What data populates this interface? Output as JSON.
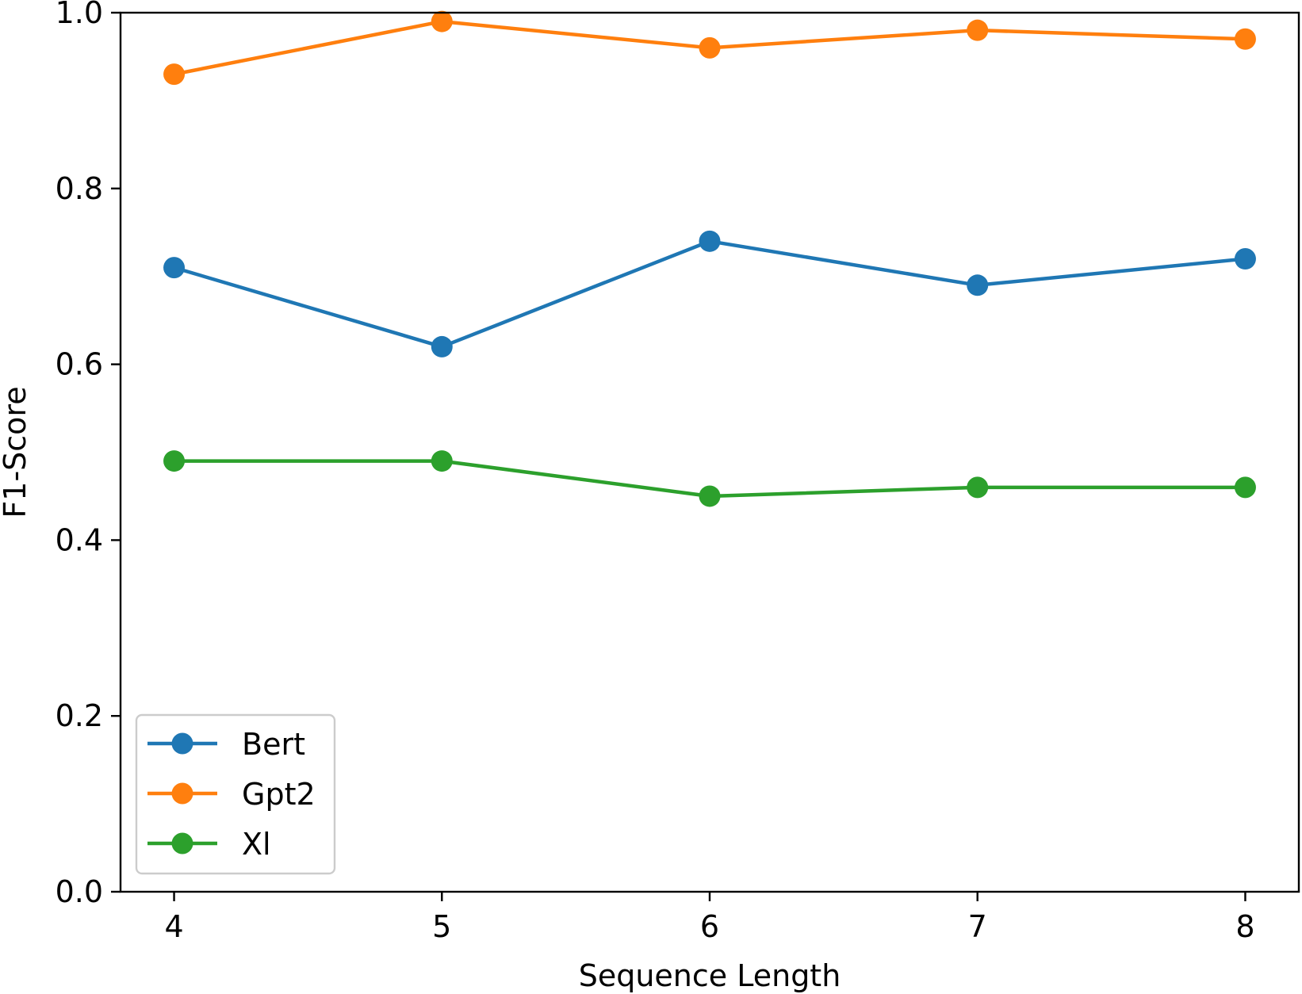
{
  "chart_data": {
    "type": "line",
    "title": "",
    "xlabel": "Sequence Length",
    "ylabel": "F1-Score",
    "x": [
      4,
      5,
      6,
      7,
      8
    ],
    "xticks": [
      "4",
      "5",
      "6",
      "7",
      "8"
    ],
    "yticks": [
      "0.0",
      "0.2",
      "0.4",
      "0.6",
      "0.8",
      "1.0"
    ],
    "xlim": [
      3.8,
      8.2
    ],
    "ylim": [
      0,
      1.0
    ],
    "grid": false,
    "legend_position": "lower-left",
    "series": [
      {
        "name": "Bert",
        "color": "#1f77b4",
        "values": [
          0.71,
          0.62,
          0.74,
          0.69,
          0.72
        ]
      },
      {
        "name": "Gpt2",
        "color": "#ff7f0e",
        "values": [
          0.93,
          0.99,
          0.96,
          0.98,
          0.97
        ]
      },
      {
        "name": "Xl",
        "color": "#2ca02c",
        "values": [
          0.49,
          0.49,
          0.45,
          0.46,
          0.46
        ]
      }
    ]
  }
}
